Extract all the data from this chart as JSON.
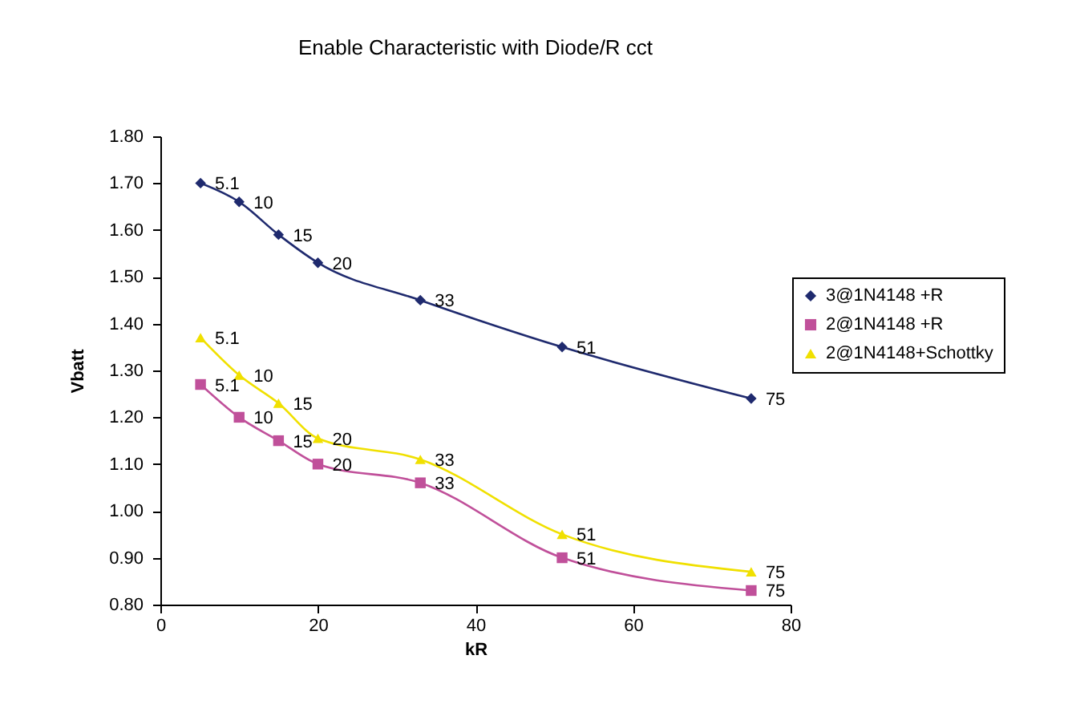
{
  "chart_data": {
    "type": "line",
    "title": "Enable Characteristic with Diode/R cct",
    "xlabel": "kR",
    "ylabel": "Vbatt",
    "x": [
      5.1,
      10,
      15,
      20,
      33,
      51,
      75
    ],
    "series": [
      {
        "name": "3@1N4148 +R",
        "color": "#1f2a6e",
        "marker": "diamond",
        "values": [
          1.7,
          1.66,
          1.59,
          1.53,
          1.45,
          1.35,
          1.24
        ]
      },
      {
        "name": "2@1N4148 +R",
        "color": "#c0509a",
        "marker": "square",
        "values": [
          1.27,
          1.2,
          1.15,
          1.1,
          1.06,
          0.9,
          0.83
        ]
      },
      {
        "name": "2@1N4148+Schottky",
        "color": "#f0e000",
        "marker": "triangle",
        "values": [
          1.37,
          1.29,
          1.23,
          1.155,
          1.11,
          0.95,
          0.87
        ]
      }
    ],
    "annotations": [
      {
        "text": "5.1",
        "x": 5.1,
        "y": 1.7
      },
      {
        "text": "10",
        "x": 10,
        "y": 1.66
      },
      {
        "text": "15",
        "x": 15,
        "y": 1.59
      },
      {
        "text": "20",
        "x": 20,
        "y": 1.53
      },
      {
        "text": "33",
        "x": 33,
        "y": 1.45
      },
      {
        "text": "51",
        "x": 51,
        "y": 1.35
      },
      {
        "text": "75",
        "x": 75,
        "y": 1.24
      },
      {
        "text": "5.1",
        "x": 5.1,
        "y": 1.27
      },
      {
        "text": "10",
        "x": 10,
        "y": 1.2
      },
      {
        "text": "15",
        "x": 15,
        "y": 1.15
      },
      {
        "text": "20",
        "x": 20,
        "y": 1.1
      },
      {
        "text": "33",
        "x": 33,
        "y": 1.06
      },
      {
        "text": "51",
        "x": 51,
        "y": 0.9
      },
      {
        "text": "75",
        "x": 75,
        "y": 0.83
      },
      {
        "text": "5.1",
        "x": 5.1,
        "y": 1.37
      },
      {
        "text": "10",
        "x": 10,
        "y": 1.29
      },
      {
        "text": "15",
        "x": 15,
        "y": 1.23
      },
      {
        "text": "20",
        "x": 20,
        "y": 1.155
      },
      {
        "text": "33",
        "x": 33,
        "y": 1.11
      },
      {
        "text": "51",
        "x": 51,
        "y": 0.95
      },
      {
        "text": "75",
        "x": 75,
        "y": 0.87
      }
    ],
    "xlim": [
      0,
      80
    ],
    "xticks": [
      0,
      20,
      40,
      60,
      80
    ],
    "ylim": [
      0.8,
      1.8
    ],
    "yticks": [
      {
        "value": 0.8,
        "label": "0.80"
      },
      {
        "value": 0.9,
        "label": "0.90"
      },
      {
        "value": 1.0,
        "label": "1.00"
      },
      {
        "value": 1.1,
        "label": "1.10"
      },
      {
        "value": 1.2,
        "label": "1.20"
      },
      {
        "value": 1.3,
        "label": "1.30"
      },
      {
        "value": 1.4,
        "label": "1.40"
      },
      {
        "value": 1.5,
        "label": "1.50"
      },
      {
        "value": 1.6,
        "label": "1.60"
      },
      {
        "value": 1.7,
        "label": "1.70"
      },
      {
        "value": 1.8,
        "label": "1.80"
      }
    ],
    "grid": false,
    "legend": "right",
    "line_style": "solid"
  }
}
